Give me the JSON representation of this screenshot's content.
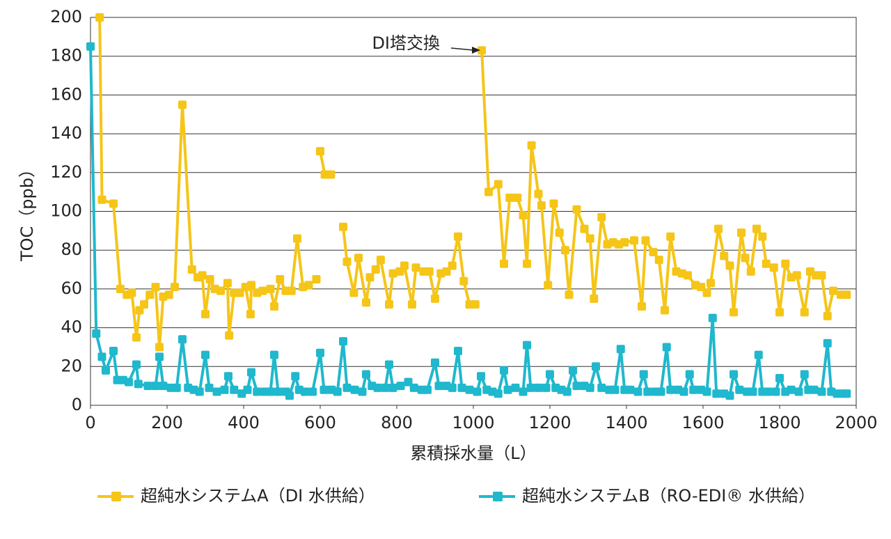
{
  "chart_data": {
    "type": "line",
    "xlabel": "累積採水量（L）",
    "ylabel": "TOC（ppb）",
    "annotation": "DI塔交換",
    "xlim": [
      0,
      2000
    ],
    "xticks": [
      0,
      200,
      400,
      600,
      800,
      1000,
      1200,
      1400,
      1600,
      1800,
      2000
    ],
    "ylim": [
      0,
      200
    ],
    "yticks": [
      0,
      20,
      40,
      60,
      80,
      100,
      120,
      140,
      160,
      180,
      200
    ],
    "grid": true,
    "series": [
      {
        "name": "超純水システムA（DI 水供給）",
        "color": "#f5c518",
        "x": [
          24,
          30,
          60,
          78,
          95,
          108,
          120,
          128,
          140,
          155,
          170,
          180,
          190,
          205,
          220,
          240,
          265,
          280,
          292,
          300,
          312,
          325,
          340,
          358,
          362,
          375,
          390,
          405,
          418,
          420,
          435,
          450,
          470,
          480,
          495,
          510,
          525,
          540,
          555,
          570,
          590,
          595,
          600,
          612,
          628,
          640,
          660,
          670,
          688,
          700,
          720,
          730,
          745,
          758,
          780,
          790,
          808,
          820,
          840,
          850,
          870,
          885,
          900,
          915,
          930,
          945,
          960,
          975,
          990,
          1005,
          1012,
          1022,
          1040,
          1065,
          1080,
          1095,
          1115,
          1130,
          1140,
          1152,
          1170,
          1178,
          1195,
          1210,
          1225,
          1240,
          1250,
          1270,
          1290,
          1305,
          1315,
          1335,
          1350,
          1365,
          1380,
          1395,
          1420,
          1440,
          1450,
          1470,
          1485,
          1500,
          1515,
          1530,
          1545,
          1560,
          1580,
          1595,
          1610,
          1620,
          1640,
          1655,
          1670,
          1680,
          1700,
          1710,
          1725,
          1740,
          1755,
          1765,
          1785,
          1800,
          1815,
          1830,
          1845,
          1865,
          1880,
          1895,
          1910,
          1925,
          1940,
          1960,
          1975
        ],
        "values": [
          200,
          106,
          104,
          60,
          57,
          58,
          35,
          49,
          52,
          57,
          61,
          30,
          56,
          57,
          61,
          155,
          70,
          66,
          67,
          47,
          65,
          60,
          59,
          63,
          36,
          58,
          58,
          61,
          47,
          62,
          58,
          59,
          60,
          51,
          65,
          59,
          59,
          86,
          61,
          62,
          65,
          null,
          131,
          119,
          119,
          null,
          92,
          74,
          58,
          76,
          53,
          66,
          70,
          75,
          52,
          68,
          69,
          72,
          52,
          71,
          69,
          69,
          55,
          68,
          69,
          72,
          87,
          64,
          52,
          52,
          null,
          183,
          110,
          114,
          73,
          107,
          107,
          98,
          73,
          134,
          109,
          103,
          62,
          104,
          89,
          80,
          57,
          101,
          91,
          86,
          55,
          97,
          83,
          84,
          83,
          84,
          85,
          51,
          85,
          79,
          75,
          49,
          87,
          69,
          68,
          67,
          62,
          61,
          58,
          63,
          91,
          77,
          72,
          48,
          89,
          76,
          69,
          91,
          87,
          73,
          71,
          48,
          73,
          66,
          67,
          48,
          69,
          67,
          67,
          46,
          59,
          57,
          57
        ]
      },
      {
        "name": "超純水システムB（RO-EDI® 水供給）",
        "color": "#1fb8cd",
        "x": [
          0,
          15,
          30,
          40,
          60,
          70,
          85,
          100,
          120,
          125,
          150,
          170,
          180,
          190,
          210,
          225,
          240,
          255,
          270,
          285,
          300,
          310,
          330,
          350,
          360,
          375,
          395,
          410,
          420,
          435,
          455,
          470,
          480,
          490,
          510,
          520,
          535,
          545,
          560,
          580,
          600,
          610,
          630,
          645,
          660,
          670,
          690,
          710,
          720,
          735,
          750,
          770,
          780,
          790,
          810,
          830,
          845,
          865,
          880,
          900,
          910,
          930,
          945,
          960,
          970,
          990,
          1010,
          1020,
          1035,
          1050,
          1065,
          1080,
          1090,
          1110,
          1130,
          1140,
          1150,
          1170,
          1190,
          1200,
          1215,
          1230,
          1245,
          1260,
          1270,
          1290,
          1305,
          1320,
          1335,
          1355,
          1370,
          1385,
          1395,
          1410,
          1430,
          1445,
          1455,
          1475,
          1490,
          1505,
          1515,
          1535,
          1550,
          1565,
          1575,
          1595,
          1610,
          1625,
          1635,
          1655,
          1670,
          1680,
          1695,
          1715,
          1730,
          1745,
          1755,
          1770,
          1790,
          1800,
          1815,
          1830,
          1850,
          1865,
          1875,
          1890,
          1910,
          1925,
          1935,
          1950,
          1965,
          1975
        ],
        "values": [
          185,
          37,
          25,
          18,
          28,
          13,
          13,
          12,
          21,
          11,
          10,
          10,
          25,
          10,
          9,
          9,
          34,
          9,
          8,
          7,
          26,
          9,
          7,
          8,
          15,
          8,
          6,
          8,
          17,
          7,
          7,
          7,
          26,
          7,
          7,
          5,
          15,
          8,
          7,
          7,
          27,
          8,
          8,
          7,
          33,
          9,
          8,
          7,
          16,
          10,
          9,
          9,
          21,
          9,
          10,
          12,
          9,
          8,
          8,
          22,
          10,
          10,
          9,
          28,
          9,
          8,
          7,
          15,
          8,
          7,
          6,
          18,
          8,
          9,
          7,
          31,
          9,
          9,
          9,
          16,
          9,
          8,
          7,
          18,
          10,
          10,
          9,
          20,
          9,
          8,
          8,
          29,
          8,
          8,
          7,
          16,
          7,
          7,
          7,
          30,
          8,
          8,
          7,
          16,
          8,
          8,
          7,
          45,
          6,
          6,
          5,
          16,
          8,
          7,
          7,
          26,
          7,
          7,
          7,
          14,
          7,
          8,
          7,
          16,
          8,
          8,
          7,
          32,
          7,
          6,
          6,
          6
        ]
      }
    ]
  }
}
